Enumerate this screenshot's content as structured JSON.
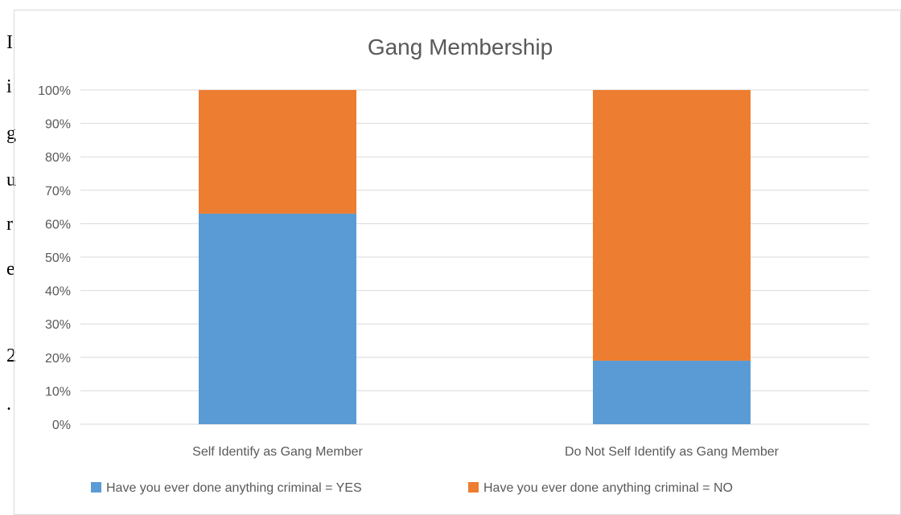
{
  "background_doc": {
    "fragments": [
      "I",
      "i",
      "g",
      "u",
      "r",
      "e",
      "2",
      "."
    ]
  },
  "chart_data": {
    "type": "bar",
    "stacked": true,
    "title": "Gang Membership",
    "categories": [
      "Self Identify as Gang Member",
      "Do Not Self Identify as Gang Member"
    ],
    "series": [
      {
        "name": "Have you ever done anything criminal = YES",
        "color": "#5b9bd5",
        "values": [
          63,
          19
        ]
      },
      {
        "name": "Have you ever done anything criminal = NO",
        "color": "#ed7d31",
        "values": [
          37,
          81
        ]
      }
    ],
    "ylim": [
      0,
      100
    ],
    "y_ticks": [
      "0%",
      "10%",
      "20%",
      "30%",
      "40%",
      "50%",
      "60%",
      "70%",
      "80%",
      "90%",
      "100%"
    ],
    "grid": true,
    "legend_position": "bottom"
  }
}
